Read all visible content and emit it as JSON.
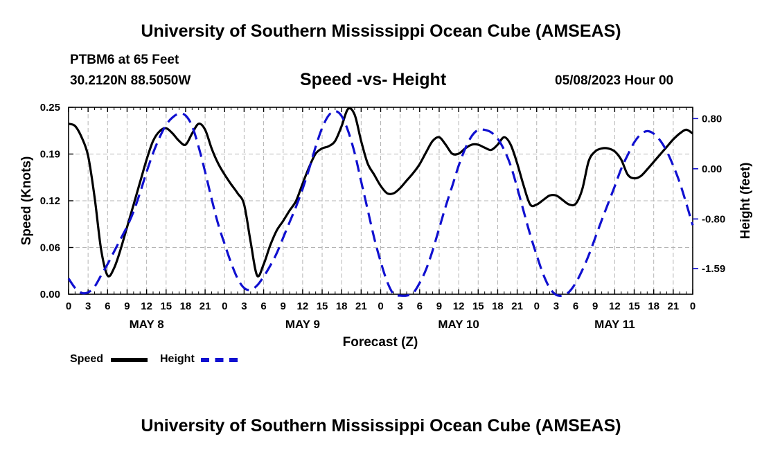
{
  "header": {
    "title": "University of Southern Mississippi Ocean Cube (AMSEAS)",
    "station": "PTBM6 at 65 Feet",
    "coords": "30.2120N  88.5050W",
    "timestamp": "05/08/2023 Hour 00"
  },
  "footer": {
    "title": "University of Southern Mississippi Ocean Cube (AMSEAS)"
  },
  "legend": {
    "speed_label": "Speed",
    "height_label": "Height"
  },
  "colors": {
    "speed": "#000000",
    "height": "#1010d0",
    "grid": "#b4b4b4"
  },
  "chart_data": {
    "type": "line",
    "title": "Speed -vs- Height",
    "xlabel": "Forecast (Z)",
    "ylabel": "Speed (Knots)",
    "y2label": "Height (feet)",
    "x_range_hours": [
      0,
      96
    ],
    "ylim": [
      0,
      0.25
    ],
    "y2lim": [
      -2.0,
      0.98
    ],
    "y_ticks": [
      "0.00",
      "0.06",
      "0.12",
      "0.19",
      "0.25"
    ],
    "y_tick_values": [
      0,
      0.0625,
      0.125,
      0.1875,
      0.25
    ],
    "y2_ticks": [
      "0.80",
      "0.00",
      "-0.80",
      "-1.59"
    ],
    "y2_tick_values": [
      0.8,
      0.0,
      -0.8,
      -1.59
    ],
    "x_tick_labels": [
      "0",
      "3",
      "6",
      "9",
      "12",
      "15",
      "18",
      "21",
      "0",
      "3",
      "6",
      "9",
      "12",
      "15",
      "18",
      "21",
      "0",
      "3",
      "6",
      "9",
      "12",
      "15",
      "18",
      "21",
      "0",
      "3",
      "6",
      "9",
      "12",
      "15",
      "18",
      "21",
      "0"
    ],
    "x_tick_hours": [
      0,
      3,
      6,
      9,
      12,
      15,
      18,
      21,
      24,
      27,
      30,
      33,
      36,
      39,
      42,
      45,
      48,
      51,
      54,
      57,
      60,
      63,
      66,
      69,
      72,
      75,
      78,
      81,
      84,
      87,
      90,
      93,
      96
    ],
    "day_labels": [
      {
        "label": "MAY 8",
        "hour": 12
      },
      {
        "label": "MAY 9",
        "hour": 36
      },
      {
        "label": "MAY 10",
        "hour": 60
      },
      {
        "label": "MAY 11",
        "hour": 84
      }
    ],
    "series": [
      {
        "name": "Speed",
        "axis": "left",
        "style": "solid",
        "x": [
          0,
          1,
          2,
          3,
          4,
          5,
          6,
          7,
          8,
          9,
          10,
          11,
          12,
          13,
          14,
          15,
          16,
          17,
          18,
          19,
          20,
          21,
          22,
          23,
          24,
          25,
          26,
          27,
          28,
          29,
          30,
          31,
          32,
          33,
          34,
          35,
          36,
          37,
          38,
          39,
          40,
          41,
          42,
          43,
          44,
          45,
          46,
          47,
          48,
          49,
          50,
          51,
          52,
          53,
          54,
          55,
          56,
          57,
          58,
          59,
          60,
          61,
          62,
          63,
          64,
          65,
          66,
          67,
          68,
          69,
          70,
          71,
          72,
          73,
          74,
          75,
          76,
          77,
          78,
          79,
          80,
          81,
          82,
          83,
          84,
          85,
          86,
          87,
          88,
          89,
          90,
          91,
          92,
          93,
          94,
          95,
          96
        ],
        "values": [
          0.228,
          0.225,
          0.21,
          0.185,
          0.13,
          0.06,
          0.025,
          0.035,
          0.06,
          0.09,
          0.12,
          0.15,
          0.18,
          0.205,
          0.218,
          0.222,
          0.215,
          0.205,
          0.2,
          0.215,
          0.228,
          0.22,
          0.195,
          0.175,
          0.16,
          0.147,
          0.135,
          0.12,
          0.07,
          0.025,
          0.04,
          0.065,
          0.085,
          0.098,
          0.112,
          0.125,
          0.148,
          0.17,
          0.188,
          0.195,
          0.198,
          0.205,
          0.225,
          0.248,
          0.24,
          0.205,
          0.175,
          0.16,
          0.145,
          0.135,
          0.135,
          0.142,
          0.152,
          0.162,
          0.174,
          0.19,
          0.205,
          0.21,
          0.2,
          0.188,
          0.188,
          0.195,
          0.2,
          0.2,
          0.196,
          0.193,
          0.2,
          0.21,
          0.2,
          0.175,
          0.145,
          0.12,
          0.12,
          0.126,
          0.132,
          0.132,
          0.126,
          0.12,
          0.121,
          0.14,
          0.178,
          0.191,
          0.195,
          0.195,
          0.191,
          0.18,
          0.16,
          0.155,
          0.158,
          0.167,
          0.177,
          0.187,
          0.197,
          0.207,
          0.215,
          0.22,
          0.215
        ]
      },
      {
        "name": "Height",
        "axis": "right",
        "style": "dashed",
        "x": [
          0,
          1,
          2,
          3,
          4,
          5,
          6,
          7,
          8,
          9,
          10,
          11,
          12,
          13,
          14,
          15,
          16,
          17,
          18,
          19,
          20,
          21,
          22,
          23,
          24,
          25,
          26,
          27,
          28,
          29,
          30,
          31,
          32,
          33,
          34,
          35,
          36,
          37,
          38,
          39,
          40,
          41,
          42,
          43,
          44,
          45,
          46,
          47,
          48,
          49,
          50,
          51,
          52,
          53,
          54,
          55,
          56,
          57,
          58,
          59,
          60,
          61,
          62,
          63,
          64,
          65,
          66,
          67,
          68,
          69,
          70,
          71,
          72,
          73,
          74,
          75,
          76,
          77,
          78,
          79,
          80,
          81,
          82,
          83,
          84,
          85,
          86,
          87,
          88,
          89,
          90,
          91,
          92,
          93,
          94,
          95,
          96
        ],
        "values": [
          -1.75,
          -1.9,
          -1.98,
          -1.97,
          -1.88,
          -1.7,
          -1.52,
          -1.32,
          -1.12,
          -0.92,
          -0.68,
          -0.38,
          -0.05,
          0.25,
          0.5,
          0.7,
          0.82,
          0.88,
          0.85,
          0.68,
          0.35,
          -0.05,
          -0.48,
          -0.88,
          -1.2,
          -1.5,
          -1.75,
          -1.9,
          -1.93,
          -1.86,
          -1.72,
          -1.55,
          -1.35,
          -1.1,
          -0.85,
          -0.6,
          -0.32,
          0.0,
          0.35,
          0.65,
          0.85,
          0.92,
          0.84,
          0.6,
          0.25,
          -0.2,
          -0.65,
          -1.1,
          -1.48,
          -1.8,
          -2.0,
          -2.07,
          -2.06,
          -1.98,
          -1.82,
          -1.6,
          -1.3,
          -0.95,
          -0.6,
          -0.28,
          0.05,
          0.32,
          0.52,
          0.62,
          0.62,
          0.58,
          0.48,
          0.3,
          0.05,
          -0.3,
          -0.68,
          -1.05,
          -1.38,
          -1.68,
          -1.9,
          -2.01,
          -2.02,
          -1.96,
          -1.82,
          -1.62,
          -1.38,
          -1.1,
          -0.82,
          -0.55,
          -0.28,
          0.0,
          0.22,
          0.42,
          0.55,
          0.6,
          0.56,
          0.45,
          0.28,
          0.05,
          -0.22,
          -0.55,
          -0.9
        ]
      }
    ]
  }
}
